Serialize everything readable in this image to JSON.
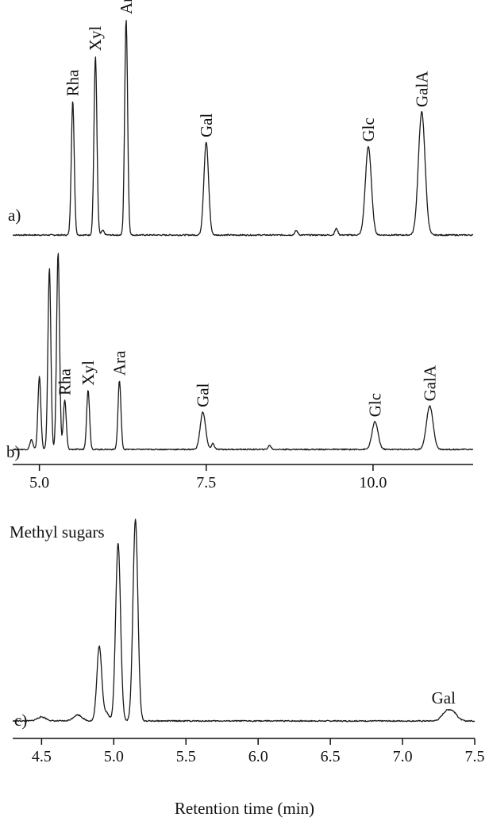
{
  "chart_data": [
    {
      "type": "line",
      "panel": "a)",
      "xlim": [
        4.6,
        11.5
      ],
      "peaks": [
        {
          "label": "Rha",
          "x": 5.5,
          "height": 0.62
        },
        {
          "label": "Xyl",
          "x": 5.84,
          "height": 0.83
        },
        {
          "label": "Ara",
          "x": 6.3,
          "height": 1.0
        },
        {
          "label": "Gal",
          "x": 7.5,
          "height": 0.43
        },
        {
          "label": "Glc",
          "x": 9.93,
          "height": 0.41
        },
        {
          "label": "GalA",
          "x": 10.73,
          "height": 0.57
        }
      ],
      "minor_peaks": [
        {
          "x": 5.95,
          "height": 0.02
        },
        {
          "x": 8.85,
          "height": 0.02
        },
        {
          "x": 9.45,
          "height": 0.03
        }
      ]
    },
    {
      "type": "line",
      "panel": "b)",
      "xlim": [
        4.6,
        11.5
      ],
      "x_ticks": [
        "5.0",
        "7.5",
        "10.0"
      ],
      "peaks": [
        {
          "label": "Rha",
          "x": 5.38,
          "height": 0.25
        },
        {
          "label": "Xyl",
          "x": 5.73,
          "height": 0.3
        },
        {
          "label": "Ara",
          "x": 6.2,
          "height": 0.35
        },
        {
          "label": "Gal",
          "x": 7.45,
          "height": 0.19
        },
        {
          "label": "Glc",
          "x": 10.03,
          "height": 0.14
        },
        {
          "label": "GalA",
          "x": 10.85,
          "height": 0.22
        }
      ],
      "minor_peaks": [
        {
          "x": 5.0,
          "height": 0.37
        },
        {
          "x": 5.15,
          "height": 0.92
        },
        {
          "x": 5.28,
          "height": 1.0
        },
        {
          "x": 4.88,
          "height": 0.05
        },
        {
          "x": 7.6,
          "height": 0.03
        },
        {
          "x": 8.45,
          "height": 0.02
        }
      ]
    },
    {
      "type": "line",
      "panel": "c)",
      "xlim": [
        4.3,
        7.5
      ],
      "x_ticks": [
        "4.5",
        "5.0",
        "5.5",
        "6.0",
        "6.5",
        "7.0",
        "7.5"
      ],
      "xlabel": "Retention time (min)",
      "annotations": [
        "Methyl sugars"
      ],
      "peaks": [
        {
          "label": "Gal",
          "x": 7.3,
          "height": 0.04
        }
      ],
      "minor_peaks": [
        {
          "x": 4.9,
          "height": 0.37
        },
        {
          "x": 5.03,
          "height": 0.88
        },
        {
          "x": 5.15,
          "height": 1.0
        },
        {
          "x": 4.5,
          "height": 0.02
        },
        {
          "x": 4.75,
          "height": 0.03
        },
        {
          "x": 4.95,
          "height": 0.04
        },
        {
          "x": 7.35,
          "height": 0.04
        }
      ]
    }
  ]
}
